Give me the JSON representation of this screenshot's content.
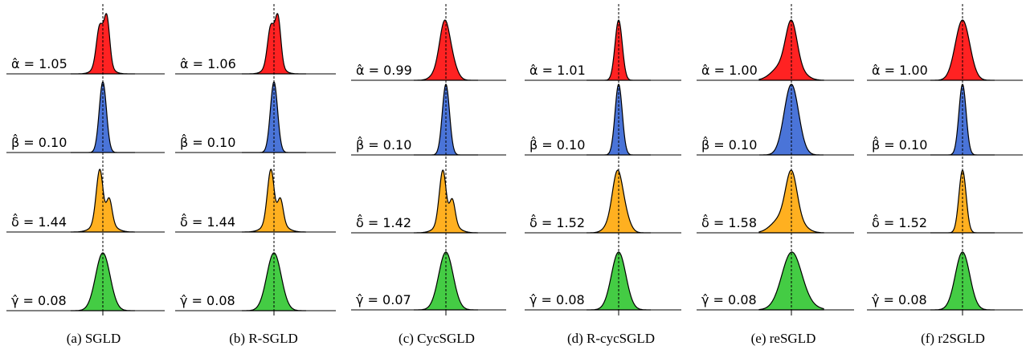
{
  "colors": {
    "alpha": "#ff2222",
    "beta": "#4a74d8",
    "delta": "#ffb020",
    "gamma": "#44cc44",
    "outline": "#000000",
    "baseline": "#000000"
  },
  "chart_data": [
    {
      "type": "area",
      "caption": "(a) SGLD",
      "rows": [
        {
          "param": "alpha",
          "label": "α̂ = 1.05",
          "estimate": 1.05,
          "shape": "bimodal-tight"
        },
        {
          "param": "beta",
          "label": "β̂ = 0.10",
          "estimate": 0.1,
          "shape": "narrow"
        },
        {
          "param": "delta",
          "label": "δ̂ = 1.44",
          "estimate": 1.44,
          "shape": "multimodal"
        },
        {
          "param": "gamma",
          "label": "γ̂ = 0.08",
          "estimate": 0.08,
          "shape": "unimodal"
        }
      ]
    },
    {
      "type": "area",
      "caption": "(b) R-SGLD",
      "rows": [
        {
          "param": "alpha",
          "label": "α̂ = 1.06",
          "estimate": 1.06,
          "shape": "bimodal-tight"
        },
        {
          "param": "beta",
          "label": "β̂ = 0.10",
          "estimate": 0.1,
          "shape": "narrow"
        },
        {
          "param": "delta",
          "label": "δ̂ = 1.44",
          "estimate": 1.44,
          "shape": "multimodal"
        },
        {
          "param": "gamma",
          "label": "γ̂ = 0.08",
          "estimate": 0.08,
          "shape": "unimodal"
        }
      ]
    },
    {
      "type": "area",
      "caption": "(c) CycSGLD",
      "rows": [
        {
          "param": "alpha",
          "label": "α̂ = 0.99",
          "estimate": 0.99,
          "shape": "skewed"
        },
        {
          "param": "beta",
          "label": "β̂ = 0.10",
          "estimate": 0.1,
          "shape": "narrow"
        },
        {
          "param": "delta",
          "label": "δ̂ = 1.42",
          "estimate": 1.42,
          "shape": "multimodal"
        },
        {
          "param": "gamma",
          "label": "γ̂ = 0.07",
          "estimate": 0.07,
          "shape": "unimodal"
        }
      ]
    },
    {
      "type": "area",
      "caption": "(d) R-cycSGLD",
      "rows": [
        {
          "param": "alpha",
          "label": "α̂ = 1.01",
          "estimate": 1.01,
          "shape": "narrow"
        },
        {
          "param": "beta",
          "label": "β̂ = 0.10",
          "estimate": 0.1,
          "shape": "narrow"
        },
        {
          "param": "delta",
          "label": "δ̂ = 1.52",
          "estimate": 1.52,
          "shape": "skewed"
        },
        {
          "param": "gamma",
          "label": "γ̂ = 0.08",
          "estimate": 0.08,
          "shape": "unimodal"
        }
      ]
    },
    {
      "type": "area",
      "caption": "(e) reSGLD",
      "rows": [
        {
          "param": "alpha",
          "label": "α̂ = 1.00",
          "estimate": 1.0,
          "shape": "wide-skewed"
        },
        {
          "param": "beta",
          "label": "β̂ = 0.10",
          "estimate": 0.1,
          "shape": "unimodal"
        },
        {
          "param": "delta",
          "label": "δ̂ = 1.58",
          "estimate": 1.58,
          "shape": "wide-skewed"
        },
        {
          "param": "gamma",
          "label": "γ̂ = 0.08",
          "estimate": 0.08,
          "shape": "wide"
        }
      ]
    },
    {
      "type": "area",
      "caption": "(f) r2SGLD",
      "rows": [
        {
          "param": "alpha",
          "label": "α̂ = 1.00",
          "estimate": 1.0,
          "shape": "unimodal"
        },
        {
          "param": "beta",
          "label": "β̂ = 0.10",
          "estimate": 0.1,
          "shape": "narrow"
        },
        {
          "param": "delta",
          "label": "δ̂ = 1.52",
          "estimate": 1.52,
          "shape": "narrow"
        },
        {
          "param": "gamma",
          "label": "γ̂ = 0.08",
          "estimate": 0.08,
          "shape": "unimodal"
        }
      ]
    }
  ]
}
